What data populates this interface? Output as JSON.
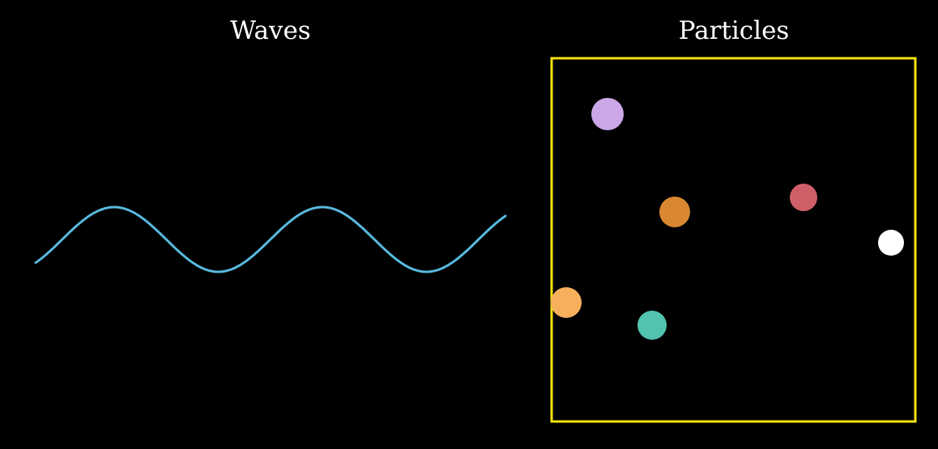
{
  "titles": {
    "waves": "Waves",
    "particles": "Particles"
  },
  "colors": {
    "background": "#000000",
    "text": "#ffffff",
    "wave": "#58b9dd",
    "box": "#f5e20f"
  },
  "particles": [
    {
      "name": "particle-lavender",
      "color": "#cba7e8"
    },
    {
      "name": "particle-dark-orange",
      "color": "#d98831"
    },
    {
      "name": "particle-red",
      "color": "#ce5f69"
    },
    {
      "name": "particle-white",
      "color": "#ffffff"
    },
    {
      "name": "particle-light-orange",
      "color": "#f6b05c"
    },
    {
      "name": "particle-teal",
      "color": "#52c3ad"
    }
  ]
}
